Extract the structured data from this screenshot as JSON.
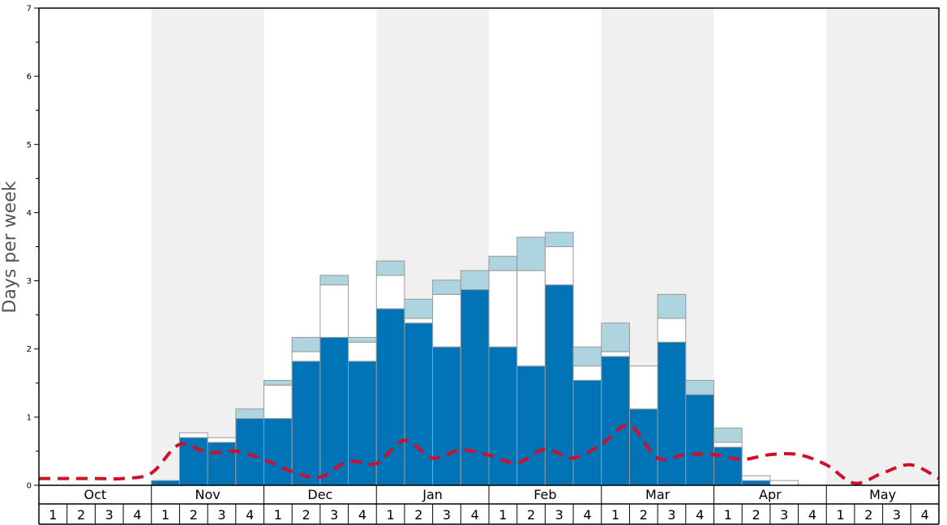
{
  "chart_data": {
    "type": "bar",
    "ylabel": "Days per week",
    "ylim": [
      0,
      7
    ],
    "yticks": [
      "0",
      "1",
      "2",
      "3",
      "4",
      "5",
      "6",
      "7"
    ],
    "months": [
      "Oct",
      "Nov",
      "Dec",
      "Jan",
      "Feb",
      "Mar",
      "Apr",
      "May"
    ],
    "week_labels": [
      "1",
      "2",
      "3",
      "4"
    ],
    "stacked": true,
    "series": [
      {
        "values": [
          0,
          0,
          0,
          0,
          0.07,
          0.7,
          0.63,
          0.98,
          0.98,
          1.82,
          2.17,
          1.82,
          2.59,
          2.38,
          2.03,
          2.87,
          2.03,
          1.75,
          2.94,
          1.54,
          1.89,
          1.12,
          2.1,
          1.33,
          0.56,
          0.07,
          0,
          0,
          0,
          0,
          0,
          0
        ]
      },
      {
        "values": [
          0,
          0,
          0,
          0,
          0,
          0.07,
          0.07,
          0,
          0.49,
          0.14,
          0.77,
          0.28,
          0.49,
          0.07,
          0.77,
          0,
          1.12,
          1.4,
          0.56,
          0.21,
          0.07,
          0.63,
          0.35,
          0,
          0.07,
          0.07,
          0.07,
          0,
          0,
          0,
          0,
          0
        ]
      },
      {
        "values": [
          0,
          0,
          0,
          0,
          0,
          0,
          0,
          0.14,
          0.07,
          0.21,
          0.14,
          0.07,
          0.21,
          0.28,
          0.21,
          0.28,
          0.21,
          0.49,
          0.21,
          0.28,
          0.42,
          0,
          0.35,
          0.21,
          0.21,
          0,
          0,
          0,
          0,
          0,
          0,
          0
        ]
      }
    ],
    "line": {
      "style": "dashed",
      "values": [
        0.1,
        0.1,
        0.1,
        0.1,
        0.18,
        0.6,
        0.48,
        0.5,
        0.38,
        0.2,
        0.12,
        0.35,
        0.32,
        0.66,
        0.4,
        0.52,
        0.44,
        0.33,
        0.53,
        0.4,
        0.6,
        0.88,
        0.4,
        0.45,
        0.45,
        0.38,
        0.45,
        0.45,
        0.3,
        0.03,
        0.18,
        0.3,
        0.1
      ]
    },
    "colors": {
      "bar_primary": "#0074b7",
      "bar_secondary": "#ffffff",
      "bar_tertiary": "#aed4e0",
      "bar_outline": "#999999",
      "line": "#d0102b",
      "month_band": "#f0f0f0"
    },
    "grid": false
  }
}
